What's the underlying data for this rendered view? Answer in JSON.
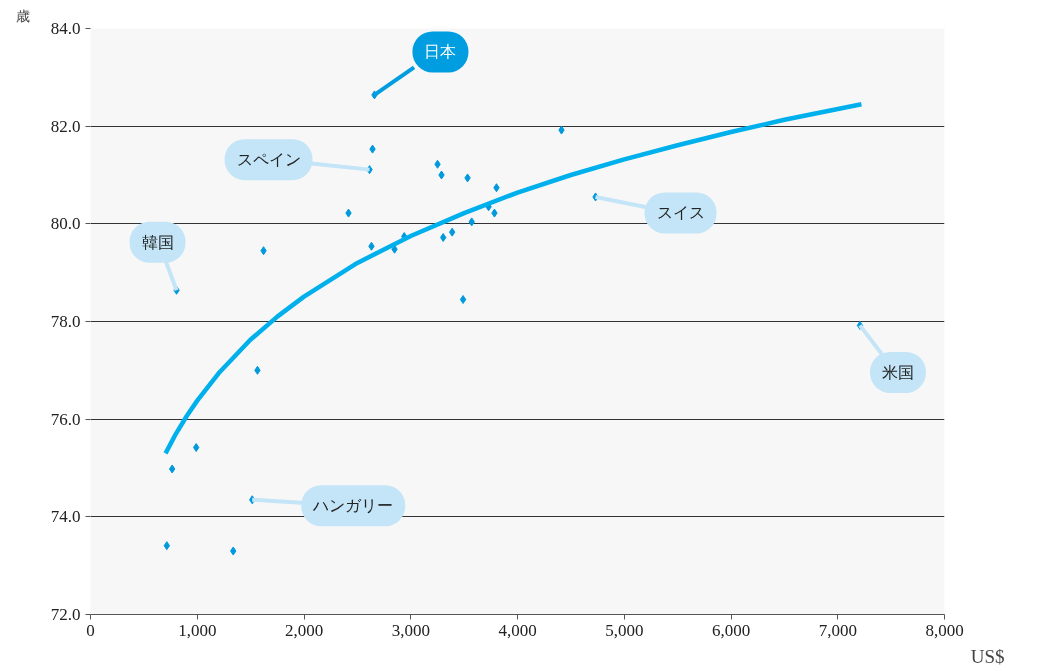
{
  "chart_data": {
    "type": "scatter",
    "xlabel": "US$",
    "ylabel": "歳",
    "xlim": [
      0,
      8000
    ],
    "ylim": [
      72,
      84
    ],
    "xticks": [
      0,
      {
        "value": 1000,
        "label": "1,000"
      },
      {
        "value": 2000,
        "label": "2,000"
      },
      {
        "value": 3000,
        "label": "3,000"
      },
      {
        "value": 4000,
        "label": "4,000"
      },
      {
        "value": 5000,
        "label": "5,000"
      },
      {
        "value": 6000,
        "label": "6,000"
      },
      {
        "value": 7000,
        "label": "7,000"
      },
      {
        "value": 8000,
        "label": "8,000"
      }
    ],
    "yticks": [
      {
        "value": 72,
        "label": "72.0"
      },
      {
        "value": 74,
        "label": "74.0"
      },
      {
        "value": 76,
        "label": "76.0"
      },
      {
        "value": 78,
        "label": "78.0"
      },
      {
        "value": 80,
        "label": "80.0"
      },
      {
        "value": 82,
        "label": "82.0"
      },
      {
        "value": 84,
        "label": "84.0"
      }
    ],
    "grid": "y",
    "series": [
      {
        "color": "#0099dd",
        "marker": "diamond",
        "x": [
          2660,
          2642,
          2614,
          806,
          1621,
          2417,
          2632,
          2939,
          2848,
          3251,
          3288,
          3532,
          3803,
          3729,
          3784,
          3571,
          3304,
          3388,
          3490,
          4412,
          4731,
          7208,
          1564,
          990,
          765,
          1515,
          715,
          1337
        ],
        "values": [
          82.64,
          81.53,
          81.11,
          78.64,
          79.45,
          80.22,
          79.54,
          79.74,
          79.48,
          81.22,
          81.0,
          80.94,
          80.74,
          80.35,
          80.22,
          80.04,
          79.72,
          79.83,
          78.45,
          81.92,
          80.55,
          77.92,
          77.0,
          75.42,
          74.98,
          74.35,
          73.41,
          73.3
        ]
      },
      {
        "type": "line",
        "color": "#00b0ec",
        "x": [
          703,
          800,
          900,
          1000,
          1200,
          1500,
          1750,
          2000,
          2500,
          3000,
          3500,
          4000,
          4500,
          5000,
          5500,
          6000,
          6500,
          7222
        ],
        "values": [
          75.3,
          75.7,
          76.06,
          76.38,
          76.94,
          77.63,
          78.1,
          78.51,
          79.2,
          79.75,
          80.22,
          80.64,
          81.0,
          81.32,
          81.61,
          81.88,
          82.13,
          82.45
        ]
      }
    ],
    "annotations": [
      {
        "text": "日本",
        "x": 2660,
        "y": 82.64
      },
      {
        "text": "スペイン",
        "x": 2614,
        "y": 81.11
      },
      {
        "text": "韓国",
        "x": 806,
        "y": 78.64
      },
      {
        "text": "スイス",
        "x": 4731,
        "y": 80.55
      },
      {
        "text": "米国",
        "x": 7208,
        "y": 77.92
      },
      {
        "text": "ハンガリー",
        "x": 1515,
        "y": 74.35
      }
    ]
  }
}
